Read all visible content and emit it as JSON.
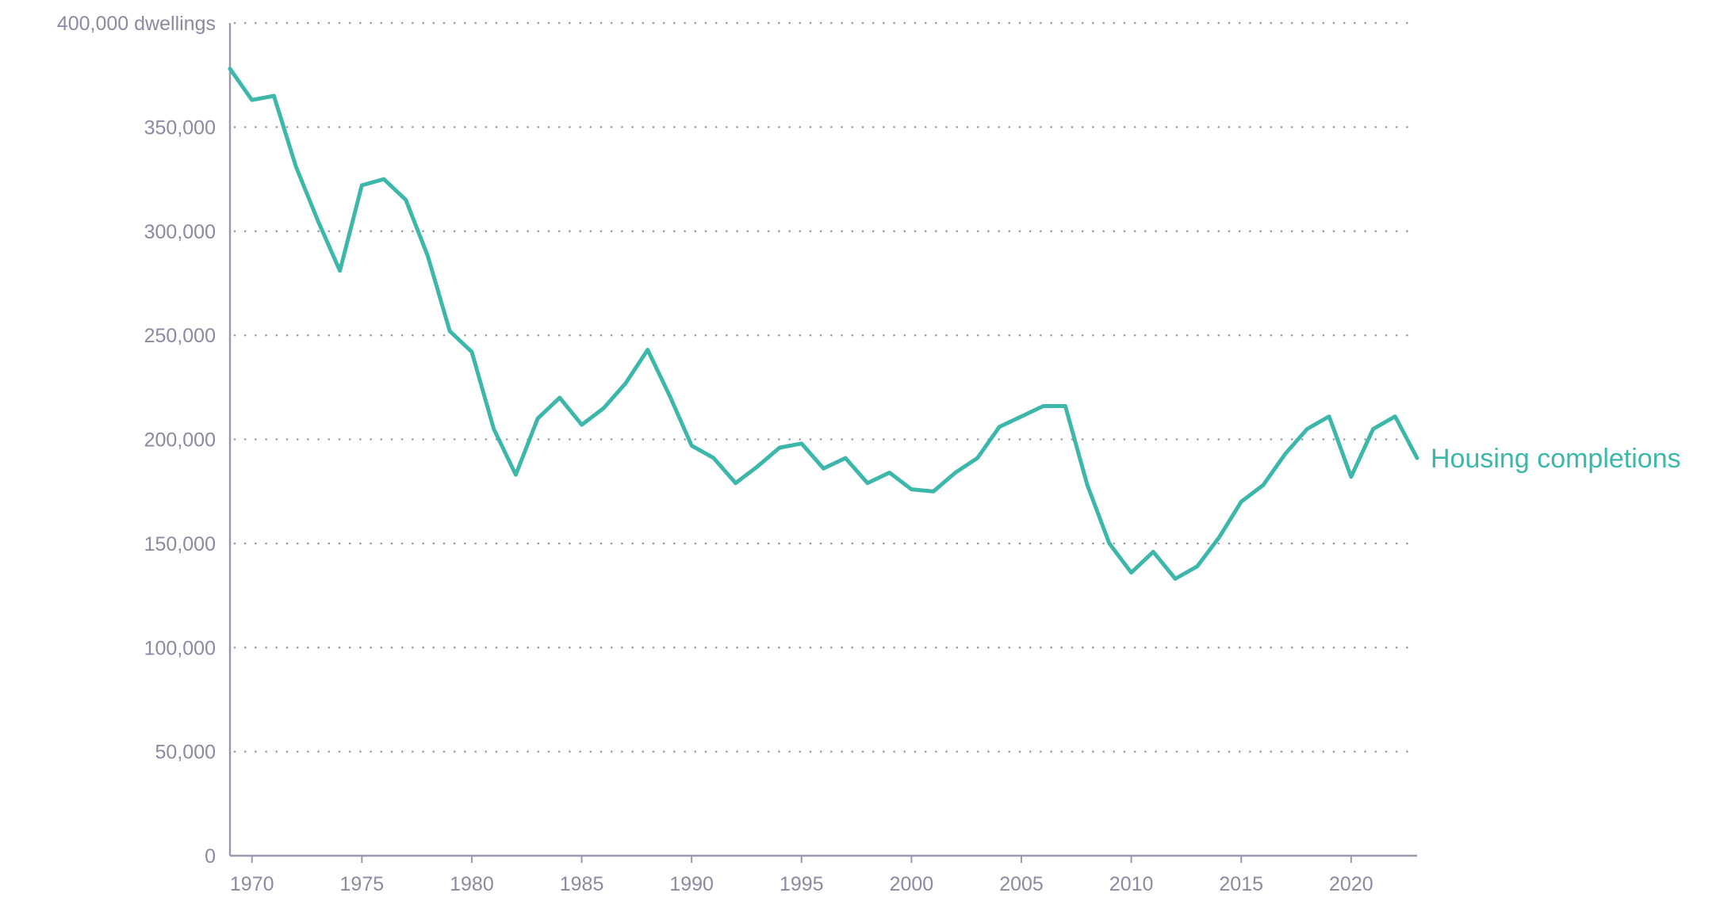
{
  "chart_data": {
    "type": "line",
    "title": "",
    "xlabel": "",
    "ylabel": "",
    "y_unit_label": "400,000 dwellings",
    "xlim": [
      1969,
      2023
    ],
    "ylim": [
      0,
      400000
    ],
    "grid": true,
    "legend": "none",
    "x_ticks": [
      1970,
      1975,
      1980,
      1985,
      1990,
      1995,
      2000,
      2005,
      2010,
      2015,
      2020
    ],
    "x_tick_labels": [
      "1970",
      "1975",
      "1980",
      "1985",
      "1990",
      "1995",
      "2000",
      "2005",
      "2010",
      "2015",
      "2020"
    ],
    "y_ticks": [
      0,
      50000,
      100000,
      150000,
      200000,
      250000,
      300000,
      350000,
      400000
    ],
    "y_tick_labels": [
      "0",
      "50,000",
      "100,000",
      "150,000",
      "200,000",
      "250,000",
      "300,000",
      "350,000",
      "400,000 dwellings"
    ],
    "series": [
      {
        "name": "Housing completions",
        "color": "#3cb7aa",
        "x": [
          1969,
          1970,
          1971,
          1972,
          1973,
          1974,
          1975,
          1976,
          1977,
          1978,
          1979,
          1980,
          1981,
          1982,
          1983,
          1984,
          1985,
          1986,
          1987,
          1988,
          1989,
          1990,
          1991,
          1992,
          1993,
          1994,
          1995,
          1996,
          1997,
          1998,
          1999,
          2000,
          2001,
          2002,
          2003,
          2004,
          2005,
          2006,
          2007,
          2008,
          2009,
          2010,
          2011,
          2012,
          2013,
          2014,
          2015,
          2016,
          2017,
          2018,
          2019,
          2020,
          2021,
          2022,
          2023
        ],
        "values": [
          378000,
          363000,
          365000,
          331000,
          305000,
          281000,
          322000,
          325000,
          315000,
          288000,
          252000,
          242000,
          205000,
          183000,
          210000,
          220000,
          207000,
          215000,
          227000,
          243000,
          221000,
          197000,
          191000,
          179000,
          187000,
          196000,
          198000,
          186000,
          191000,
          179000,
          184000,
          176000,
          175000,
          184000,
          191000,
          206000,
          211000,
          216000,
          216000,
          178000,
          150000,
          136000,
          146000,
          133000,
          139000,
          153000,
          170000,
          178000,
          193000,
          205000,
          211000,
          182000,
          205000,
          211000,
          191000
        ]
      }
    ]
  }
}
